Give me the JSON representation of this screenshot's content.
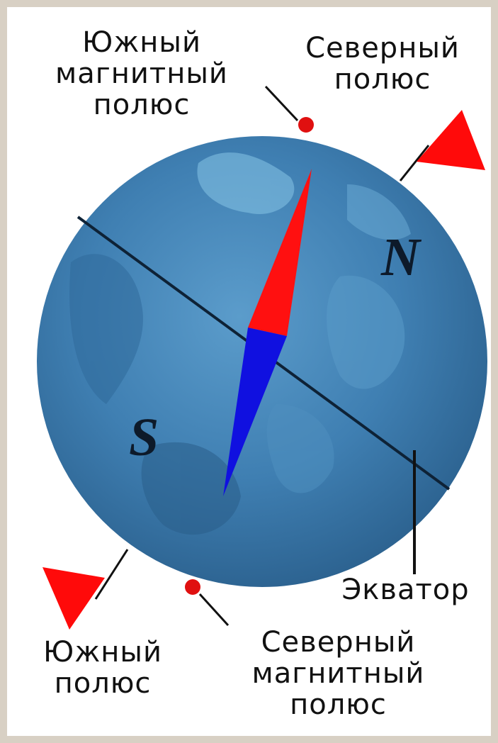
{
  "labels": {
    "south_magnetic_pole": [
      "Южный",
      "магнитный",
      "полюс"
    ],
    "north_geo_pole": [
      "Северный",
      "полюс"
    ],
    "equator": "Экватор",
    "south_geo_pole": [
      "Южный",
      "полюс"
    ],
    "north_magnetic_pole": [
      "Северный",
      "магнитный",
      "полюс"
    ],
    "n_letter": "N",
    "s_letter": "S"
  },
  "colors": {
    "globe": "#3f7fb2",
    "needle_north": "#ff1010",
    "needle_south": "#1010e0",
    "flag": "#ff0a0a",
    "magnetic_dot": "#e01010",
    "frame": "#d8d0c4"
  }
}
